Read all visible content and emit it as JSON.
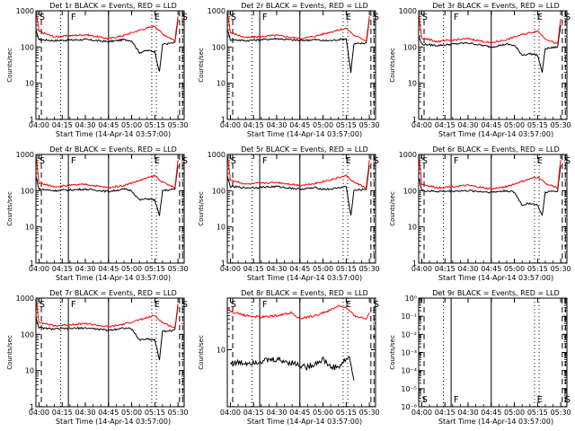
{
  "figure": {
    "xlabel": "Start Time (14-Apr-14 03:57:00)",
    "x_ticks": [
      "04:00",
      "04:15",
      "04:30",
      "04:45",
      "05:00",
      "05:15",
      "05:30"
    ],
    "ylabel": "Counts/sec",
    "event_marks": [
      "S",
      "F",
      "E",
      "S"
    ],
    "colors": {
      "events": "#000000",
      "lld": "#ff0000",
      "axes": "#000000"
    }
  },
  "chart_data": [
    {
      "type": "line",
      "title": "Det 1r BLACK = Events, RED = LLD",
      "yscale": "log",
      "y_ticks": [
        "1",
        "10",
        "100",
        "1000"
      ],
      "series": [
        {
          "name": "Events",
          "x": [
            "03:58",
            "04:00",
            "04:10",
            "04:30",
            "04:45",
            "04:55",
            "05:00",
            "05:05",
            "05:10",
            "05:15",
            "05:18",
            "05:20",
            "05:28",
            "05:30"
          ],
          "values": [
            280,
            160,
            150,
            160,
            140,
            160,
            150,
            70,
            80,
            75,
            20,
            120,
            130,
            600
          ]
        },
        {
          "name": "LLD",
          "x": [
            "03:58",
            "04:00",
            "04:10",
            "04:30",
            "04:45",
            "04:55",
            "05:05",
            "05:15",
            "05:20",
            "05:28",
            "05:30"
          ],
          "values": [
            1000,
            270,
            190,
            220,
            170,
            210,
            290,
            380,
            230,
            150,
            700
          ]
        }
      ]
    },
    {
      "type": "line",
      "title": "Det 2r BLACK = Events, RED = LLD",
      "yscale": "log",
      "y_ticks": [
        "1",
        "10",
        "100",
        "1000"
      ],
      "series": [
        {
          "name": "Events",
          "x": [
            "03:58",
            "04:00",
            "04:10",
            "04:30",
            "04:45",
            "04:55",
            "05:00",
            "05:05",
            "05:10",
            "05:15",
            "05:18",
            "05:20",
            "05:28",
            "05:30"
          ],
          "values": [
            300,
            160,
            150,
            170,
            150,
            160,
            150,
            150,
            160,
            170,
            20,
            120,
            130,
            600
          ]
        },
        {
          "name": "LLD",
          "x": [
            "03:58",
            "04:00",
            "04:10",
            "04:30",
            "04:45",
            "04:55",
            "05:05",
            "05:15",
            "05:20",
            "05:28",
            "05:30"
          ],
          "values": [
            1000,
            250,
            180,
            210,
            170,
            200,
            260,
            330,
            210,
            150,
            700
          ]
        }
      ]
    },
    {
      "type": "line",
      "title": "Det 3r BLACK = Events, RED = LLD",
      "yscale": "log",
      "y_ticks": [
        "1",
        "10",
        "100",
        "1000"
      ],
      "series": [
        {
          "name": "Events",
          "x": [
            "03:58",
            "04:00",
            "04:10",
            "04:30",
            "04:45",
            "04:55",
            "05:00",
            "05:05",
            "05:10",
            "05:15",
            "05:18",
            "05:20",
            "05:28",
            "05:30"
          ],
          "values": [
            200,
            120,
            110,
            130,
            100,
            120,
            110,
            60,
            65,
            60,
            20,
            90,
            100,
            400
          ]
        },
        {
          "name": "LLD",
          "x": [
            "03:58",
            "04:00",
            "04:10",
            "04:30",
            "04:45",
            "04:55",
            "05:05",
            "05:15",
            "05:20",
            "05:28",
            "05:30"
          ],
          "values": [
            800,
            180,
            140,
            170,
            130,
            160,
            220,
            280,
            170,
            120,
            600
          ]
        }
      ]
    },
    {
      "type": "line",
      "title": "Det 4r BLACK = Events, RED = LLD",
      "yscale": "log",
      "y_ticks": [
        "1",
        "10",
        "100",
        "1000"
      ],
      "series": [
        {
          "name": "Events",
          "x": [
            "03:58",
            "04:00",
            "04:10",
            "04:30",
            "04:45",
            "04:55",
            "05:00",
            "05:05",
            "05:10",
            "05:15",
            "05:18",
            "05:20",
            "05:28",
            "05:30"
          ],
          "values": [
            250,
            110,
            100,
            110,
            95,
            110,
            100,
            55,
            60,
            55,
            20,
            100,
            110,
            500
          ]
        },
        {
          "name": "LLD",
          "x": [
            "03:58",
            "04:00",
            "04:10",
            "04:30",
            "04:45",
            "04:55",
            "05:05",
            "05:15",
            "05:20",
            "05:28",
            "05:30"
          ],
          "values": [
            1000,
            160,
            130,
            150,
            120,
            140,
            190,
            260,
            170,
            120,
            700
          ]
        }
      ]
    },
    {
      "type": "line",
      "title": "Det 5r BLACK = Events, RED = LLD",
      "yscale": "log",
      "y_ticks": [
        "1",
        "10",
        "100",
        "1000"
      ],
      "series": [
        {
          "name": "Events",
          "x": [
            "03:58",
            "04:00",
            "04:10",
            "04:30",
            "04:45",
            "04:55",
            "05:00",
            "05:05",
            "05:10",
            "05:15",
            "05:18",
            "05:20",
            "05:28",
            "05:30"
          ],
          "values": [
            250,
            130,
            120,
            130,
            110,
            120,
            110,
            110,
            120,
            130,
            20,
            100,
            110,
            500
          ]
        },
        {
          "name": "LLD",
          "x": [
            "03:58",
            "04:00",
            "04:10",
            "04:30",
            "04:45",
            "04:55",
            "05:05",
            "05:15",
            "05:20",
            "05:28",
            "05:30"
          ],
          "values": [
            1000,
            200,
            150,
            170,
            140,
            160,
            200,
            260,
            170,
            120,
            700
          ]
        }
      ]
    },
    {
      "type": "line",
      "title": "Det 6r BLACK = Events, RED = LLD",
      "yscale": "log",
      "y_ticks": [
        "1",
        "10",
        "100",
        "1000"
      ],
      "series": [
        {
          "name": "Events",
          "x": [
            "03:58",
            "04:00",
            "04:10",
            "04:30",
            "04:45",
            "04:55",
            "05:00",
            "05:05",
            "05:10",
            "05:15",
            "05:18",
            "05:20",
            "05:28",
            "05:30"
          ],
          "values": [
            250,
            100,
            95,
            100,
            90,
            100,
            90,
            40,
            45,
            40,
            20,
            90,
            100,
            500
          ]
        },
        {
          "name": "LLD",
          "x": [
            "03:58",
            "04:00",
            "04:10",
            "04:30",
            "04:45",
            "04:55",
            "05:05",
            "05:15",
            "05:20",
            "05:28",
            "05:30"
          ],
          "values": [
            1000,
            150,
            120,
            140,
            110,
            130,
            180,
            240,
            160,
            120,
            700
          ]
        }
      ]
    },
    {
      "type": "line",
      "title": "Det 7r BLACK = Events, RED = LLD",
      "yscale": "log",
      "y_ticks": [
        "1",
        "10",
        "100",
        "1000"
      ],
      "series": [
        {
          "name": "Events",
          "x": [
            "03:58",
            "04:00",
            "04:10",
            "04:30",
            "04:45",
            "04:55",
            "05:00",
            "05:05",
            "05:10",
            "05:15",
            "05:18",
            "05:20",
            "05:28",
            "05:30"
          ],
          "values": [
            300,
            150,
            140,
            150,
            130,
            150,
            140,
            70,
            75,
            70,
            20,
            120,
            130,
            600
          ]
        },
        {
          "name": "LLD",
          "x": [
            "03:58",
            "04:00",
            "04:10",
            "04:30",
            "04:45",
            "04:55",
            "05:05",
            "05:15",
            "05:20",
            "05:28",
            "05:30"
          ],
          "values": [
            1000,
            220,
            170,
            200,
            160,
            190,
            250,
            330,
            210,
            150,
            700
          ]
        }
      ]
    },
    {
      "type": "line",
      "title": "Det 8r BLACK = Events, RED = LLD",
      "yscale": "log",
      "y_ticks": [
        "10"
      ],
      "series": [
        {
          "name": "Events",
          "x": [
            "04:00",
            "04:10",
            "04:20",
            "04:30",
            "04:40",
            "04:50",
            "05:00",
            "05:05",
            "05:10",
            "05:15",
            "05:17",
            "05:20"
          ],
          "values": [
            5,
            5,
            5.5,
            6,
            5,
            4,
            6,
            4,
            4,
            6,
            7,
            2
          ]
        },
        {
          "name": "LLD",
          "x": [
            "03:58",
            "04:00",
            "04:10",
            "04:20",
            "04:30",
            "04:40",
            "04:45",
            "04:55",
            "05:05",
            "05:10",
            "05:15",
            "05:20",
            "05:28",
            "05:30"
          ],
          "values": [
            90,
            75,
            60,
            55,
            60,
            70,
            50,
            60,
            80,
            100,
            90,
            60,
            50,
            70
          ]
        }
      ]
    },
    {
      "type": "line",
      "title": "Det 9r BLACK = Events, RED = LLD",
      "yscale": "log",
      "y_ticks": [
        "10⁰",
        "10⁻¹",
        "10⁻²",
        "10⁻³",
        "10⁻⁴",
        "10⁻⁵",
        "10⁻⁶"
      ],
      "series": []
    }
  ]
}
